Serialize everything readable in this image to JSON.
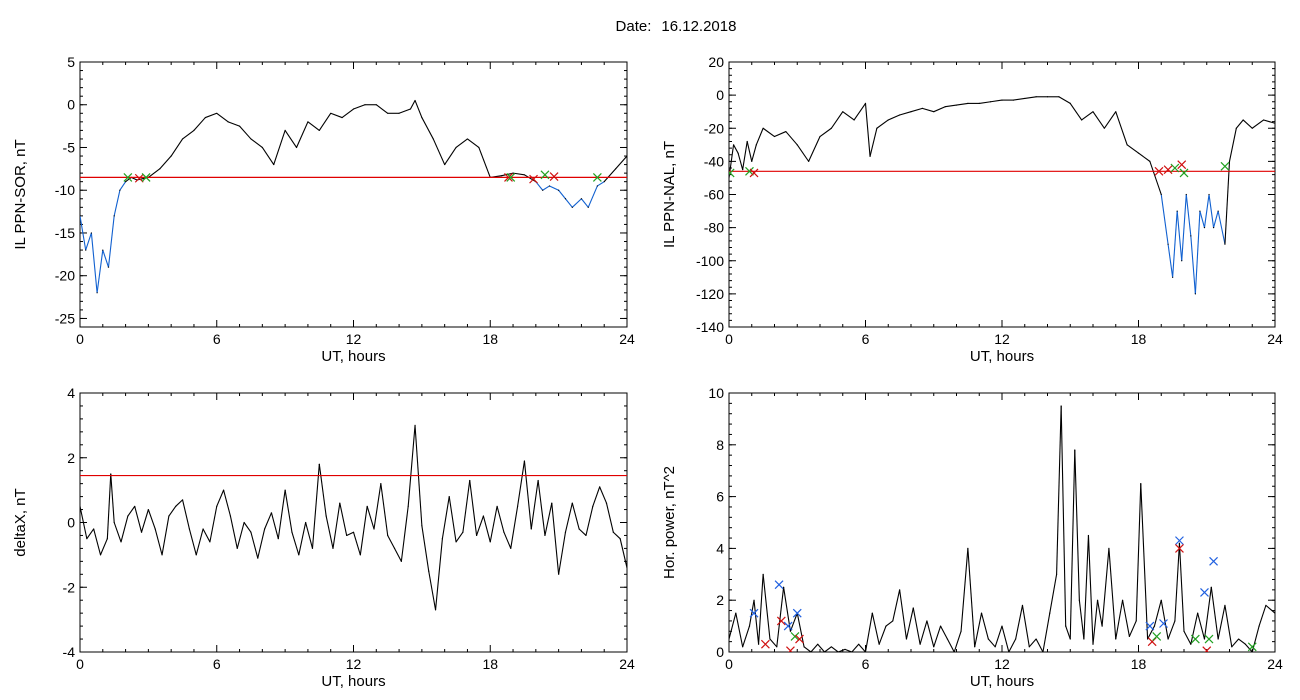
{
  "header": {
    "date_label": "Date:",
    "date_value": "16.12.2018"
  },
  "colors": {
    "trace": "#000000",
    "threshold": "#e00000",
    "highlight": "#1060d0",
    "marker_red": "#d01010",
    "marker_green": "#20a020",
    "marker_blue": "#2060e0"
  },
  "chart_data": [
    {
      "id": "il-sor",
      "type": "line",
      "title": "",
      "xlabel": "UT, hours",
      "ylabel": "IL PPN-SOR, nT",
      "xlim": [
        0,
        24
      ],
      "ylim": [
        -26,
        5
      ],
      "xticks": [
        0,
        6,
        12,
        18,
        24
      ],
      "yticks": [
        5,
        0,
        -5,
        -10,
        -15,
        -20,
        -25
      ],
      "threshold": -8.5,
      "x": [
        0,
        0.25,
        0.5,
        0.75,
        1,
        1.25,
        1.5,
        1.75,
        2,
        2.25,
        2.5,
        3,
        3.5,
        4,
        4.5,
        5,
        5.5,
        6,
        6.5,
        7,
        7.5,
        8,
        8.5,
        9,
        9.5,
        10,
        10.5,
        11,
        11.5,
        12,
        12.5,
        13,
        13.5,
        14,
        14.5,
        14.7,
        15,
        15.5,
        16,
        16.5,
        17,
        17.5,
        18,
        18.5,
        19,
        19.5,
        20,
        20.3,
        20.6,
        21,
        21.3,
        21.6,
        22,
        22.3,
        22.7,
        23,
        23.5,
        24
      ],
      "y": [
        -13,
        -17,
        -15,
        -22,
        -17,
        -19,
        -13,
        -10,
        -9,
        -8.5,
        -8.8,
        -8.5,
        -7.5,
        -6,
        -4,
        -3,
        -1.5,
        -1,
        -2,
        -2.5,
        -4,
        -5,
        -7,
        -3,
        -5,
        -2,
        -3,
        -1,
        -1.5,
        -0.5,
        0,
        0,
        -1,
        -1,
        -0.5,
        0.5,
        -1.5,
        -4,
        -7,
        -5,
        -4,
        -5,
        -8.5,
        -8.3,
        -8,
        -8.2,
        -9,
        -10,
        -9.5,
        -10,
        -11,
        -12,
        -11,
        -12,
        -9.5,
        -9,
        -7.5,
        -6
      ],
      "below_threshold_color": "highlight",
      "markers": [
        {
          "x": 2.1,
          "y": -8.5,
          "color": "marker_green"
        },
        {
          "x": 2.6,
          "y": -8.6,
          "color": "marker_red"
        },
        {
          "x": 2.9,
          "y": -8.5,
          "color": "marker_green"
        },
        {
          "x": 18.8,
          "y": -8.5,
          "color": "marker_red"
        },
        {
          "x": 18.9,
          "y": -8.5,
          "color": "marker_green"
        },
        {
          "x": 19.9,
          "y": -8.7,
          "color": "marker_red"
        },
        {
          "x": 20.4,
          "y": -8.2,
          "color": "marker_green"
        },
        {
          "x": 20.8,
          "y": -8.4,
          "color": "marker_red"
        },
        {
          "x": 22.7,
          "y": -8.5,
          "color": "marker_green"
        }
      ]
    },
    {
      "id": "il-nal",
      "type": "line",
      "title": "",
      "xlabel": "UT, hours",
      "ylabel": "IL PPN-NAL, nT",
      "xlim": [
        0,
        24
      ],
      "ylim": [
        -140,
        20
      ],
      "xticks": [
        0,
        6,
        12,
        18,
        24
      ],
      "yticks": [
        20,
        0,
        -20,
        -40,
        -60,
        -80,
        -100,
        -120,
        -140
      ],
      "threshold": -46,
      "x": [
        0,
        0.2,
        0.4,
        0.6,
        0.8,
        1,
        1.2,
        1.5,
        2,
        2.5,
        3,
        3.5,
        4,
        4.5,
        5,
        5.5,
        6,
        6.2,
        6.5,
        7,
        7.5,
        8,
        8.5,
        9,
        9.5,
        10,
        10.5,
        11,
        11.5,
        12,
        12.5,
        13,
        13.5,
        14,
        14.5,
        15,
        15.5,
        16,
        16.5,
        17,
        17.5,
        18,
        18.5,
        19,
        19.3,
        19.5,
        19.7,
        19.9,
        20.1,
        20.3,
        20.5,
        20.7,
        20.9,
        21.1,
        21.3,
        21.5,
        21.8,
        22,
        22.3,
        22.6,
        23,
        23.5,
        24
      ],
      "y": [
        -50,
        -30,
        -35,
        -45,
        -28,
        -40,
        -30,
        -20,
        -25,
        -22,
        -30,
        -40,
        -25,
        -20,
        -10,
        -15,
        -5,
        -37,
        -20,
        -15,
        -12,
        -10,
        -8,
        -10,
        -7,
        -6,
        -5,
        -5,
        -4,
        -3,
        -3,
        -2,
        -1,
        -1,
        -1,
        -5,
        -15,
        -10,
        -20,
        -10,
        -30,
        -35,
        -40,
        -60,
        -90,
        -110,
        -70,
        -100,
        -60,
        -85,
        -120,
        -70,
        -80,
        -60,
        -80,
        -70,
        -90,
        -40,
        -20,
        -15,
        -20,
        -15,
        -17
      ],
      "below_threshold_color": "highlight",
      "markers": [
        {
          "x": 0.05,
          "y": -47,
          "color": "marker_green"
        },
        {
          "x": 0.9,
          "y": -46,
          "color": "marker_green"
        },
        {
          "x": 1.1,
          "y": -47,
          "color": "marker_red"
        },
        {
          "x": 18.9,
          "y": -46,
          "color": "marker_red"
        },
        {
          "x": 19.3,
          "y": -45,
          "color": "marker_red"
        },
        {
          "x": 19.6,
          "y": -44,
          "color": "marker_green"
        },
        {
          "x": 19.9,
          "y": -42,
          "color": "marker_red"
        },
        {
          "x": 20.0,
          "y": -47,
          "color": "marker_green"
        },
        {
          "x": 21.8,
          "y": -43,
          "color": "marker_green"
        }
      ]
    },
    {
      "id": "deltax",
      "type": "line",
      "title": "",
      "xlabel": "UT, hours",
      "ylabel": "deltaX, nT",
      "xlim": [
        0,
        24
      ],
      "ylim": [
        -4,
        4
      ],
      "xticks": [
        0,
        6,
        12,
        18,
        24
      ],
      "yticks": [
        4,
        2,
        0,
        -2,
        -4
      ],
      "threshold": 1.45,
      "x": [
        0,
        0.3,
        0.6,
        0.9,
        1.2,
        1.35,
        1.5,
        1.8,
        2.1,
        2.4,
        2.7,
        3,
        3.3,
        3.6,
        3.9,
        4.2,
        4.5,
        4.8,
        5.1,
        5.4,
        5.7,
        6,
        6.3,
        6.6,
        6.9,
        7.2,
        7.5,
        7.8,
        8.1,
        8.4,
        8.7,
        9,
        9.3,
        9.6,
        9.9,
        10.2,
        10.5,
        10.8,
        11.1,
        11.4,
        11.7,
        12,
        12.3,
        12.6,
        12.9,
        13.2,
        13.5,
        13.8,
        14.1,
        14.4,
        14.7,
        15,
        15.3,
        15.6,
        15.9,
        16.2,
        16.5,
        16.8,
        17.1,
        17.4,
        17.7,
        18,
        18.3,
        18.6,
        18.9,
        19.2,
        19.5,
        19.8,
        20.1,
        20.4,
        20.7,
        21,
        21.3,
        21.6,
        21.9,
        22.2,
        22.5,
        22.8,
        23.1,
        23.4,
        23.7,
        24
      ],
      "y": [
        0.5,
        -0.5,
        -0.2,
        -1,
        -0.5,
        1.5,
        0,
        -0.6,
        0.2,
        0.5,
        -0.3,
        0.4,
        -0.2,
        -1,
        0.2,
        0.5,
        0.7,
        -0.2,
        -1,
        -0.2,
        -0.6,
        0.5,
        1,
        0.2,
        -0.8,
        0,
        -0.3,
        -1.1,
        -0.2,
        0.3,
        -0.5,
        1,
        -0.3,
        -1,
        0,
        -0.8,
        1.8,
        0.2,
        -0.8,
        0.6,
        -0.4,
        -0.3,
        -1,
        0.5,
        -0.2,
        1.2,
        -0.4,
        -0.8,
        -1.2,
        0.5,
        3,
        -0.1,
        -1.5,
        -2.7,
        -0.5,
        0.8,
        -0.6,
        -0.3,
        1.3,
        -0.4,
        0.2,
        -0.6,
        0.5,
        -0.3,
        -0.8,
        0.5,
        1.9,
        -0.2,
        1.3,
        -0.4,
        0.6,
        -1.6,
        -0.3,
        0.6,
        -0.2,
        -0.4,
        0.5,
        1.1,
        0.6,
        -0.3,
        -0.5,
        -1.4
      ]
    },
    {
      "id": "hor-power",
      "type": "line",
      "title": "",
      "xlabel": "UT, hours",
      "ylabel": "Hor. power, nT^2",
      "xlim": [
        0,
        24
      ],
      "ylim": [
        0,
        10
      ],
      "xticks": [
        0,
        6,
        12,
        18,
        24
      ],
      "yticks": [
        10,
        8,
        6,
        4,
        2,
        0
      ],
      "x": [
        0,
        0.3,
        0.6,
        0.9,
        1.1,
        1.3,
        1.5,
        1.8,
        2.1,
        2.4,
        2.7,
        3,
        3.3,
        3.6,
        3.9,
        4.2,
        4.5,
        4.8,
        5.1,
        5.4,
        5.7,
        6,
        6.3,
        6.6,
        6.9,
        7.2,
        7.5,
        7.8,
        8.1,
        8.4,
        8.7,
        9,
        9.3,
        9.6,
        9.9,
        10.2,
        10.5,
        10.8,
        11.1,
        11.4,
        11.7,
        12,
        12.3,
        12.6,
        12.9,
        13.2,
        13.5,
        13.8,
        14.1,
        14.4,
        14.6,
        14.8,
        15,
        15.2,
        15.4,
        15.6,
        15.8,
        16,
        16.2,
        16.4,
        16.7,
        17,
        17.3,
        17.6,
        17.9,
        18.1,
        18.4,
        18.7,
        19,
        19.3,
        19.6,
        19.8,
        20,
        20.3,
        20.6,
        20.9,
        21.2,
        21.5,
        21.8,
        22.1,
        22.4,
        22.7,
        23,
        23.3,
        23.6,
        24
      ],
      "y": [
        0.5,
        1.5,
        0.2,
        1,
        2,
        0.3,
        3,
        0.5,
        0.2,
        2.5,
        0.8,
        1.5,
        0.2,
        0,
        0.3,
        0,
        0.2,
        0,
        0.1,
        0,
        0.3,
        0,
        1.5,
        0.3,
        1,
        1.2,
        2.4,
        0.5,
        1.7,
        0.3,
        1.2,
        0.2,
        1,
        0.5,
        0,
        0.8,
        4,
        0.2,
        1.5,
        0.5,
        0.2,
        1,
        0,
        0.5,
        1.8,
        0.2,
        0.5,
        0,
        1.5,
        3,
        9.5,
        1,
        0.5,
        7.8,
        2,
        0.5,
        4.5,
        0.3,
        2,
        1,
        4,
        0.5,
        2,
        0.6,
        1.2,
        6.5,
        0.5,
        1,
        2,
        0.5,
        1.2,
        4.2,
        0.8,
        0.3,
        1.5,
        0.5,
        2.5,
        0.5,
        1.8,
        0.2,
        0.5,
        0.3,
        0,
        1,
        1.8,
        1.5
      ],
      "markers": [
        {
          "x": 1.1,
          "y": 1.5,
          "color": "marker_blue"
        },
        {
          "x": 1.6,
          "y": 0.3,
          "color": "marker_red"
        },
        {
          "x": 2.2,
          "y": 2.6,
          "color": "marker_blue"
        },
        {
          "x": 2.3,
          "y": 1.2,
          "color": "marker_red"
        },
        {
          "x": 2.6,
          "y": 1.0,
          "color": "marker_blue"
        },
        {
          "x": 2.7,
          "y": 0.05,
          "color": "marker_red"
        },
        {
          "x": 2.9,
          "y": 0.6,
          "color": "marker_green"
        },
        {
          "x": 3.0,
          "y": 1.5,
          "color": "marker_blue"
        },
        {
          "x": 3.1,
          "y": 0.5,
          "color": "marker_red"
        },
        {
          "x": 18.5,
          "y": 1.0,
          "color": "marker_blue"
        },
        {
          "x": 18.6,
          "y": 0.4,
          "color": "marker_red"
        },
        {
          "x": 18.8,
          "y": 0.6,
          "color": "marker_green"
        },
        {
          "x": 19.1,
          "y": 1.1,
          "color": "marker_blue"
        },
        {
          "x": 19.8,
          "y": 4.3,
          "color": "marker_blue"
        },
        {
          "x": 19.8,
          "y": 4.0,
          "color": "marker_red"
        },
        {
          "x": 20.5,
          "y": 0.5,
          "color": "marker_green"
        },
        {
          "x": 20.9,
          "y": 2.3,
          "color": "marker_blue"
        },
        {
          "x": 21.0,
          "y": 0.05,
          "color": "marker_red"
        },
        {
          "x": 21.1,
          "y": 0.5,
          "color": "marker_green"
        },
        {
          "x": 21.3,
          "y": 3.5,
          "color": "marker_blue"
        },
        {
          "x": 23.0,
          "y": 0.2,
          "color": "marker_green"
        }
      ]
    }
  ]
}
